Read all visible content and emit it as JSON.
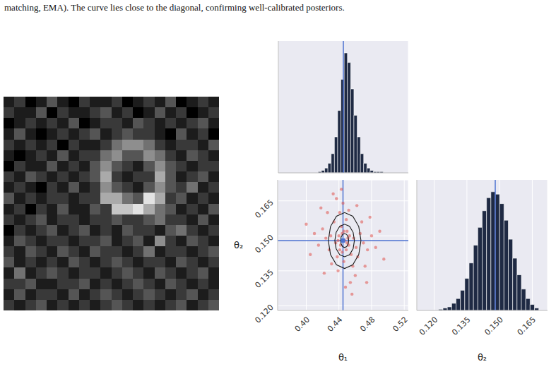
{
  "caption": "matching, EMA). The curve lies close to the diagonal, confirming well-calibrated posteriors.",
  "image": {
    "range": [
      0,
      9
    ],
    "pixels": [
      [
        1,
        2,
        0,
        1,
        3,
        1,
        0,
        2,
        1,
        1,
        2,
        0,
        1,
        2,
        1,
        3,
        0,
        1,
        2,
        1
      ],
      [
        2,
        1,
        1,
        3,
        0,
        2,
        1,
        1,
        2,
        3,
        1,
        2,
        0,
        1,
        3,
        1,
        2,
        0,
        1,
        2
      ],
      [
        0,
        1,
        2,
        1,
        2,
        1,
        3,
        0,
        1,
        2,
        2,
        1,
        3,
        2,
        1,
        2,
        1,
        2,
        3,
        1
      ],
      [
        1,
        3,
        1,
        0,
        1,
        2,
        1,
        2,
        3,
        1,
        2,
        3,
        2,
        2,
        1,
        0,
        3,
        1,
        2,
        0
      ],
      [
        2,
        1,
        2,
        1,
        2,
        0,
        2,
        1,
        1,
        2,
        4,
        5,
        5,
        4,
        2,
        1,
        2,
        2,
        1,
        3
      ],
      [
        1,
        0,
        1,
        2,
        1,
        3,
        1,
        2,
        2,
        4,
        5,
        3,
        3,
        5,
        4,
        2,
        1,
        3,
        2,
        1
      ],
      [
        0,
        2,
        1,
        1,
        3,
        1,
        2,
        1,
        3,
        5,
        3,
        2,
        1,
        3,
        5,
        3,
        2,
        1,
        2,
        2
      ],
      [
        2,
        1,
        3,
        2,
        1,
        2,
        1,
        2,
        3,
        6,
        2,
        1,
        2,
        2,
        6,
        3,
        1,
        2,
        3,
        1
      ],
      [
        1,
        2,
        1,
        0,
        2,
        1,
        3,
        1,
        2,
        5,
        3,
        2,
        1,
        3,
        5,
        3,
        2,
        4,
        1,
        2
      ],
      [
        3,
        1,
        2,
        1,
        2,
        2,
        1,
        2,
        2,
        6,
        6,
        4,
        3,
        8,
        6,
        2,
        3,
        1,
        2,
        1
      ],
      [
        1,
        2,
        0,
        2,
        1,
        3,
        1,
        1,
        3,
        2,
        7,
        7,
        8,
        6,
        4,
        3,
        1,
        2,
        1,
        3
      ],
      [
        2,
        1,
        2,
        3,
        1,
        2,
        2,
        1,
        2,
        2,
        3,
        2,
        2,
        3,
        4,
        2,
        2,
        1,
        3,
        1
      ],
      [
        0,
        2,
        1,
        2,
        3,
        1,
        2,
        3,
        1,
        2,
        1,
        3,
        2,
        2,
        1,
        3,
        4,
        2,
        1,
        2
      ],
      [
        1,
        3,
        2,
        1,
        2,
        2,
        1,
        2,
        2,
        3,
        1,
        2,
        3,
        1,
        5,
        2,
        1,
        3,
        2,
        1
      ],
      [
        2,
        1,
        3,
        2,
        1,
        3,
        2,
        1,
        3,
        2,
        2,
        1,
        2,
        4,
        1,
        2,
        2,
        1,
        2,
        3
      ],
      [
        3,
        1,
        2,
        1,
        2,
        1,
        3,
        2,
        1,
        2,
        3,
        2,
        1,
        2,
        2,
        1,
        3,
        2,
        1,
        2
      ],
      [
        1,
        4,
        1,
        2,
        3,
        2,
        1,
        2,
        2,
        1,
        2,
        3,
        2,
        1,
        3,
        2,
        1,
        2,
        3,
        1
      ],
      [
        2,
        2,
        3,
        1,
        1,
        2,
        2,
        3,
        1,
        2,
        1,
        2,
        3,
        2,
        1,
        3,
        2,
        1,
        2,
        1
      ],
      [
        1,
        3,
        1,
        2,
        2,
        1,
        3,
        1,
        2,
        3,
        2,
        1,
        2,
        3,
        2,
        1,
        2,
        3,
        1,
        2
      ],
      [
        2,
        1,
        2,
        3,
        1,
        2,
        1,
        2,
        1,
        2,
        3,
        2,
        1,
        2,
        1,
        2,
        3,
        1,
        2,
        3
      ]
    ]
  },
  "chart_data": [
    {
      "type": "histogram",
      "bins": [
        0.414,
        0.418,
        0.422,
        0.426,
        0.43,
        0.434,
        0.438,
        0.442,
        0.446,
        0.45,
        0.454,
        0.458,
        0.462,
        0.466,
        0.47,
        0.474,
        0.478,
        0.482,
        0.486,
        0.49,
        0.494
      ],
      "values": [
        1,
        2,
        4,
        8,
        16,
        30,
        52,
        78,
        100,
        92,
        70,
        48,
        30,
        16,
        8,
        4,
        2,
        1,
        1,
        1
      ],
      "color": "#1f2a44",
      "xlim": [
        0.365,
        0.525
      ],
      "xticks": [
        {
          "value": 0.4,
          "label": "0.40"
        },
        0.44,
        0.48,
        0.52
      ],
      "ylim": [
        0,
        110
      ],
      "grid": true,
      "tick_labels": false,
      "truth_x": 0.445
    },
    {
      "type": "scatter",
      "x_label": "θ₁",
      "y_label": "θ₂",
      "color": "#e0524c",
      "x": [
        0.447,
        0.44,
        0.452,
        0.444,
        0.45,
        0.436,
        0.458,
        0.443,
        0.455,
        0.438,
        0.461,
        0.43,
        0.449,
        0.446,
        0.466,
        0.428,
        0.441,
        0.457,
        0.434,
        0.463,
        0.47,
        0.424,
        0.452,
        0.439,
        0.475,
        0.42,
        0.445,
        0.46,
        0.431,
        0.468,
        0.415,
        0.48,
        0.437,
        0.454,
        0.426,
        0.472,
        0.41,
        0.485,
        0.448,
        0.433,
        0.49,
        0.405,
        0.462,
        0.422,
        0.478,
        0.443,
        0.456,
        0.4,
        0.495,
        0.418,
        0.474,
        0.451,
        0.442,
        0.446,
        0.449,
        0.453,
        0.439,
        0.444,
        0.45,
        0.441
      ],
      "y": [
        0.148,
        0.15,
        0.146,
        0.143,
        0.152,
        0.147,
        0.149,
        0.154,
        0.142,
        0.141,
        0.145,
        0.15,
        0.157,
        0.139,
        0.151,
        0.144,
        0.16,
        0.137,
        0.156,
        0.141,
        0.147,
        0.149,
        0.161,
        0.135,
        0.144,
        0.153,
        0.164,
        0.133,
        0.138,
        0.156,
        0.146,
        0.15,
        0.166,
        0.13,
        0.16,
        0.137,
        0.151,
        0.145,
        0.128,
        0.168,
        0.152,
        0.142,
        0.163,
        0.134,
        0.158,
        0.17,
        0.125,
        0.155,
        0.14,
        0.162,
        0.13,
        0.149,
        0.146,
        0.152,
        0.144,
        0.15,
        0.148,
        0.151,
        0.147,
        0.144
      ],
      "contours": [
        [
          [
            0.467,
            0.148
          ],
          [
            0.4643,
            0.154
          ],
          [
            0.457,
            0.1584
          ],
          [
            0.447,
            0.16
          ],
          [
            0.437,
            0.1584
          ],
          [
            0.4297,
            0.154
          ],
          [
            0.427,
            0.148
          ],
          [
            0.4297,
            0.142
          ],
          [
            0.437,
            0.1376
          ],
          [
            0.447,
            0.136
          ],
          [
            0.457,
            0.1376
          ],
          [
            0.4643,
            0.142
          ],
          [
            0.467,
            0.148
          ]
        ],
        [
          [
            0.459,
            0.148
          ],
          [
            0.4574,
            0.1515
          ],
          [
            0.453,
            0.1541
          ],
          [
            0.447,
            0.155
          ],
          [
            0.441,
            0.1541
          ],
          [
            0.4366,
            0.1515
          ],
          [
            0.435,
            0.148
          ],
          [
            0.4366,
            0.1445
          ],
          [
            0.441,
            0.1419
          ],
          [
            0.447,
            0.141
          ],
          [
            0.453,
            0.1419
          ],
          [
            0.4574,
            0.1445
          ],
          [
            0.459,
            0.148
          ]
        ],
        [
          [
            0.452,
            0.148
          ],
          [
            0.4513,
            0.1495
          ],
          [
            0.4495,
            0.1506
          ],
          [
            0.447,
            0.151
          ],
          [
            0.4445,
            0.1506
          ],
          [
            0.4427,
            0.1495
          ],
          [
            0.442,
            0.148
          ],
          [
            0.4427,
            0.1465
          ],
          [
            0.4445,
            0.1454
          ],
          [
            0.447,
            0.145
          ],
          [
            0.4495,
            0.1454
          ],
          [
            0.4513,
            0.1465
          ],
          [
            0.452,
            0.148
          ]
        ]
      ],
      "truth": [
        0.445,
        0.148
      ],
      "xlim": [
        0.365,
        0.525
      ],
      "xticks": [
        {
          "value": 0.4,
          "label": "0.40"
        },
        0.44,
        0.48,
        0.52
      ],
      "ylim": [
        0.118,
        0.174
      ],
      "yticks": [
        {
          "value": 0.12,
          "label": "0.120"
        },
        0.135,
        {
          "value": 0.15,
          "label": "0.150"
        },
        0.165
      ],
      "grid": true
    },
    {
      "type": "histogram",
      "x_label": "θ₂",
      "bins": [
        0.122,
        0.124,
        0.126,
        0.128,
        0.13,
        0.132,
        0.134,
        0.136,
        0.138,
        0.14,
        0.142,
        0.144,
        0.146,
        0.148,
        0.15,
        0.152,
        0.154,
        0.156,
        0.158,
        0.16,
        0.162,
        0.164,
        0.166,
        0.168
      ],
      "values": [
        1,
        2,
        3,
        6,
        10,
        17,
        27,
        40,
        55,
        70,
        84,
        95,
        100,
        98,
        90,
        76,
        60,
        44,
        30,
        18,
        10,
        5,
        2
      ],
      "color": "#1f2a44",
      "xlim": [
        0.112,
        0.172
      ],
      "xticks": [
        {
          "value": 0.12,
          "label": "0.120"
        },
        0.135,
        {
          "value": 0.15,
          "label": "0.150"
        },
        0.165
      ],
      "ylim": [
        0,
        110
      ],
      "grid": true,
      "tick_labels": "x",
      "truth_x": 0.148
    }
  ]
}
